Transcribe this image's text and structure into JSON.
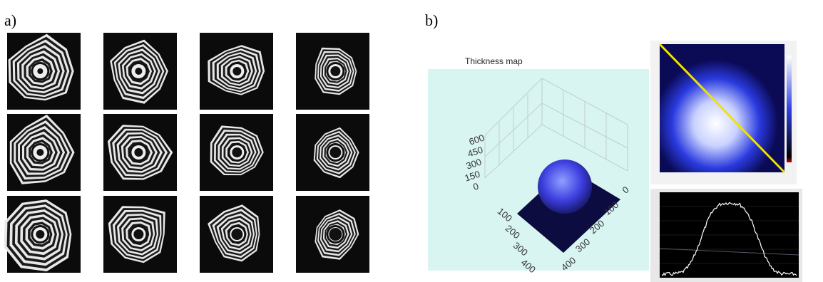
{
  "panel_a": {
    "label": "a)"
  },
  "panel_b": {
    "label": "b)",
    "thickness_map": {
      "title": "Thickness map",
      "z_ticks": [
        600,
        450,
        300,
        150,
        0
      ],
      "left_ticks": [
        100,
        200,
        300,
        400
      ],
      "right_ticks": [
        0,
        100,
        200,
        300,
        400
      ]
    }
  }
}
